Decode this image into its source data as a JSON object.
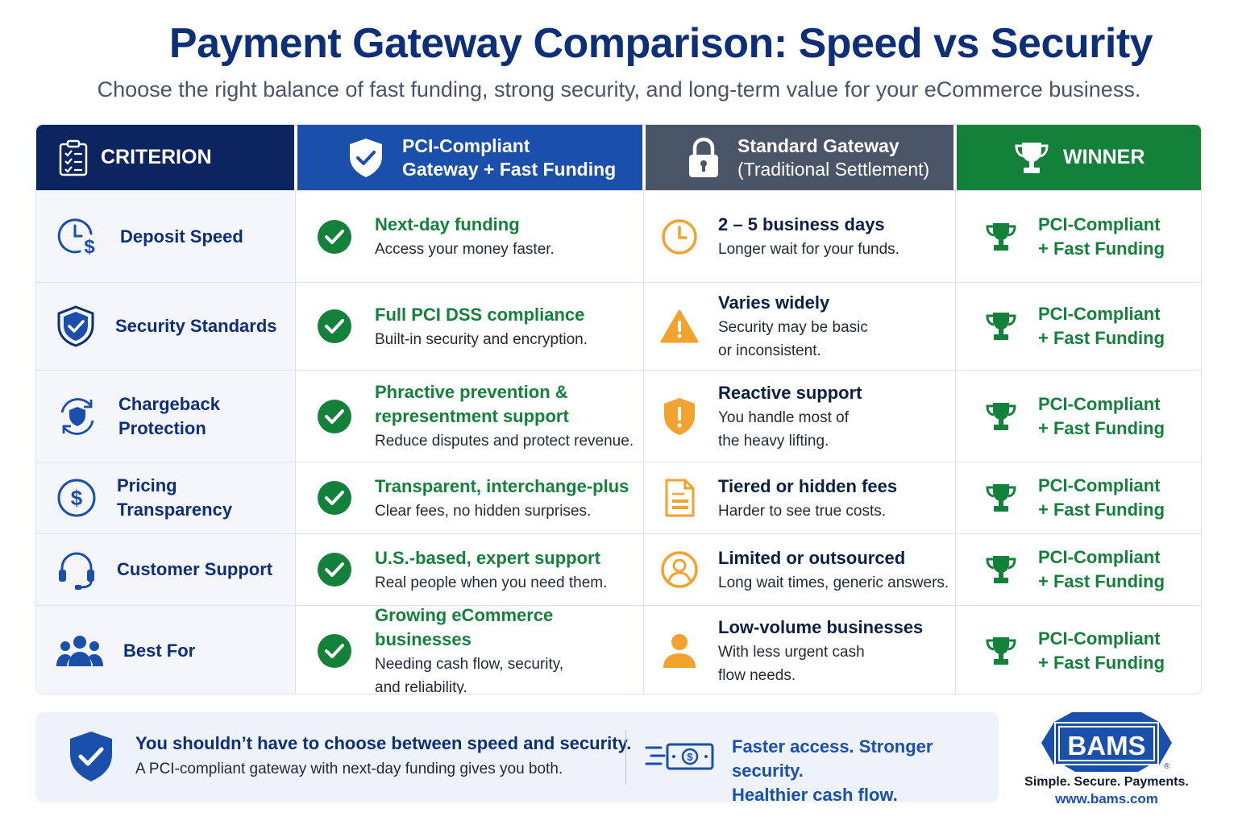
{
  "header": {
    "title": "Payment Gateway Comparison: Speed vs Security",
    "subtitle": "Choose the right balance of fast funding, strong security, and long-term value for your eCommerce business."
  },
  "columns": {
    "criterion": "CRITERION",
    "pci_line1": "PCI-Compliant",
    "pci_line2": "Gateway + Fast Funding",
    "standard_line1": "Standard Gateway",
    "standard_line2": "(Traditional Settlement)",
    "winner": "WINNER"
  },
  "rows": [
    {
      "criterion_lines": [
        "Deposit Speed"
      ],
      "criterion_icon": "clock-dollar-icon",
      "pci_title_lines": [
        "Next-day funding"
      ],
      "pci_desc_lines": [
        "Access your money faster."
      ],
      "std_icon": "clock-icon",
      "std_title": "2 – 5 business days",
      "std_desc_lines": [
        "Longer wait for your funds."
      ],
      "winner_lines": [
        "PCI-Compliant",
        "+ Fast Funding"
      ]
    },
    {
      "criterion_lines": [
        "Security Standards"
      ],
      "criterion_icon": "shield-check-icon",
      "pci_title_lines": [
        "Full PCI DSS compliance"
      ],
      "pci_desc_lines": [
        "Built-in security and encryption."
      ],
      "std_icon": "warning-icon",
      "std_title": "Varies widely",
      "std_desc_lines": [
        "Security may be basic",
        "or inconsistent."
      ],
      "winner_lines": [
        "PCI-Compliant",
        "+ Fast Funding"
      ]
    },
    {
      "criterion_lines": [
        "Chargeback",
        "Protection"
      ],
      "criterion_icon": "shield-cycle-icon",
      "pci_title_lines": [
        "Phractive prevention &",
        "representment support"
      ],
      "pci_desc_lines": [
        "Reduce disputes and protect revenue."
      ],
      "std_icon": "shield-alert-icon",
      "std_title": "Reactive support",
      "std_desc_lines": [
        "You handle most of",
        "the heavy lifting."
      ],
      "winner_lines": [
        "PCI-Compliant",
        "+ Fast Funding"
      ]
    },
    {
      "criterion_lines": [
        "Pricing",
        "Transparency"
      ],
      "criterion_icon": "dollar-circle-icon",
      "pci_title_lines": [
        "Transparent, interchange-plus"
      ],
      "pci_desc_lines": [
        "Clear fees, no hidden surprises."
      ],
      "std_icon": "document-icon",
      "std_title": "Tiered or hidden fees",
      "std_desc_lines": [
        "Harder to see true costs."
      ],
      "winner_lines": [
        "PCI-Compliant",
        "+ Fast Funding"
      ]
    },
    {
      "criterion_lines": [
        "Customer Support"
      ],
      "criterion_icon": "headset-icon",
      "pci_title_lines": [
        "U.S.-based, expert support"
      ],
      "pci_desc_lines": [
        "Real people when you need them."
      ],
      "std_icon": "person-circle-icon",
      "std_title": "Limited or outsourced",
      "std_desc_lines": [
        "Long wait times, generic answers."
      ],
      "winner_lines": [
        "PCI-Compliant",
        "+ Fast Funding"
      ]
    },
    {
      "criterion_lines": [
        "Best For"
      ],
      "criterion_icon": "group-icon",
      "pci_title_lines": [
        "Growing eCommerce businesses"
      ],
      "pci_desc_lines": [
        "Needing cash flow, security,",
        "and reliability."
      ],
      "std_icon": "person-icon",
      "std_title": "Low-volume businesses",
      "std_desc_lines": [
        "With less urgent cash",
        "flow needs."
      ],
      "winner_lines": [
        "PCI-Compliant",
        "+ Fast Funding"
      ]
    }
  ],
  "footer": {
    "bold": "You shouldn’t have to choose between speed and security.",
    "sub": "A PCI-compliant gateway with next-day funding gives you both.",
    "right_line1": "Faster access. Stronger security.",
    "right_line2": "Healthier cash flow."
  },
  "brand": {
    "logo_text": "BAMS",
    "registered": "®",
    "tagline": "Simple. Secure. Payments.",
    "url": "www.bams.com"
  },
  "colors": {
    "navy": "#0c2560",
    "blue": "#1b4fac",
    "slate": "#4a5568",
    "green": "#14813a",
    "orange": "#f2a22e"
  }
}
